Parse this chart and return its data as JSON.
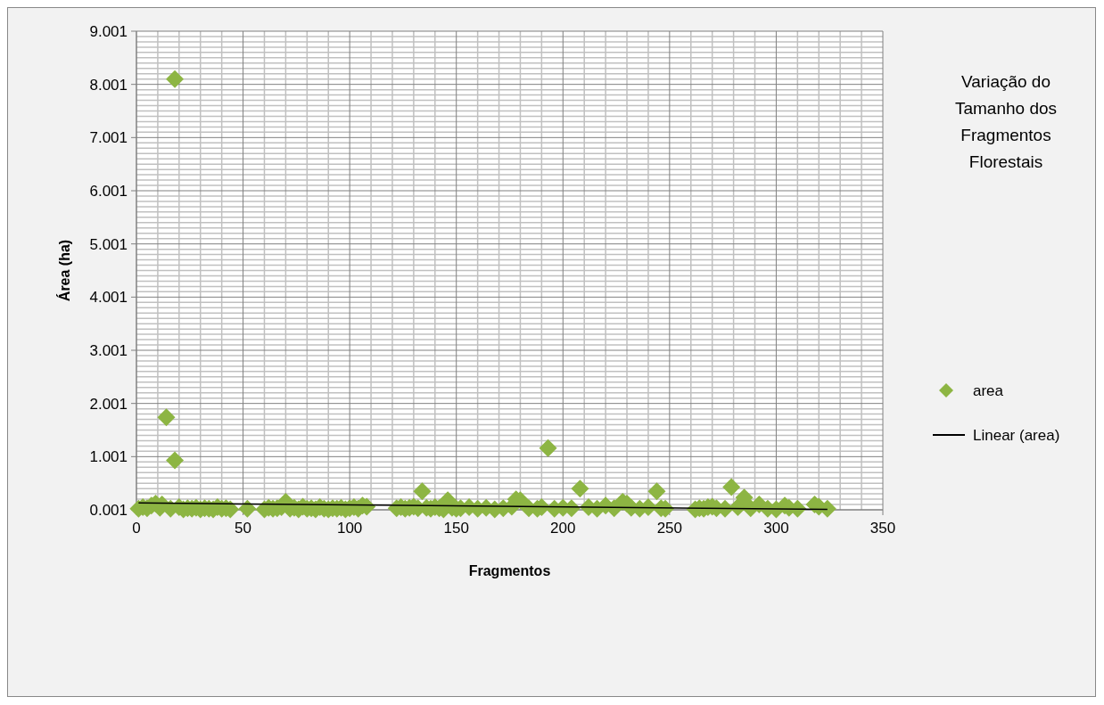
{
  "chart_data": {
    "type": "scatter",
    "title": "Variação do Tamanho dos Fragmentos Florestais",
    "xlabel": "Fragmentos",
    "ylabel": "Área (ha)",
    "xlim": [
      0,
      350
    ],
    "xticks": [
      0,
      50,
      100,
      150,
      200,
      250,
      300,
      350
    ],
    "ylim": [
      0.001,
      9.001
    ],
    "yticks": [
      0.001,
      1.001,
      2.001,
      3.001,
      4.001,
      5.001,
      6.001,
      7.001,
      8.001,
      9.001
    ],
    "grid": true,
    "legend": "right",
    "marker": "diamond",
    "series": [
      {
        "name": "area",
        "color": "#8db543",
        "x": [
          1,
          3,
          5,
          7,
          9,
          11,
          12,
          14,
          16,
          18,
          18,
          20,
          22,
          24,
          26,
          28,
          30,
          32,
          34,
          36,
          38,
          40,
          42,
          44,
          52,
          60,
          62,
          64,
          66,
          68,
          70,
          72,
          74,
          76,
          78,
          80,
          82,
          84,
          86,
          88,
          90,
          92,
          94,
          96,
          98,
          100,
          102,
          104,
          106,
          108,
          122,
          124,
          126,
          128,
          130,
          132,
          134,
          136,
          138,
          140,
          142,
          144,
          146,
          148,
          150,
          152,
          156,
          160,
          164,
          168,
          172,
          176,
          178,
          180,
          184,
          188,
          190,
          193,
          196,
          200,
          204,
          208,
          212,
          216,
          220,
          224,
          228,
          230,
          232,
          236,
          240,
          244,
          246,
          248,
          262,
          264,
          266,
          268,
          270,
          272,
          276,
          279,
          282,
          285,
          288,
          292,
          296,
          300,
          304,
          306,
          310,
          318,
          320,
          324
        ],
        "values": [
          0.02,
          0.05,
          0.03,
          0.08,
          0.12,
          0.04,
          0.1,
          1.74,
          0.02,
          8.1,
          0.93,
          0.05,
          0.01,
          0.03,
          0.02,
          0.04,
          0.01,
          0.03,
          0.02,
          0.01,
          0.05,
          0.02,
          0.03,
          0.01,
          0.02,
          0.01,
          0.04,
          0.02,
          0.03,
          0.05,
          0.15,
          0.02,
          0.04,
          0.01,
          0.06,
          0.02,
          0.03,
          0.01,
          0.05,
          0.02,
          0.01,
          0.03,
          0.02,
          0.04,
          0.01,
          0.03,
          0.05,
          0.02,
          0.08,
          0.06,
          0.03,
          0.05,
          0.02,
          0.04,
          0.06,
          0.03,
          0.35,
          0.04,
          0.02,
          0.05,
          0.03,
          0.01,
          0.18,
          0.04,
          0.02,
          0.03,
          0.05,
          0.02,
          0.04,
          0.01,
          0.03,
          0.06,
          0.2,
          0.18,
          0.03,
          0.02,
          0.05,
          1.16,
          0.02,
          0.04,
          0.03,
          0.4,
          0.05,
          0.02,
          0.08,
          0.03,
          0.15,
          0.12,
          0.04,
          0.02,
          0.05,
          0.35,
          0.03,
          0.02,
          0.01,
          0.03,
          0.02,
          0.05,
          0.06,
          0.03,
          0.02,
          0.43,
          0.05,
          0.23,
          0.03,
          0.1,
          0.02,
          0.01,
          0.08,
          0.04,
          0.02,
          0.1,
          0.06,
          0.02
        ]
      },
      {
        "name": "Linear (area)",
        "color": "#000000",
        "type": "line",
        "marker": "none",
        "x": [
          1,
          324
        ],
        "values": [
          0.13,
          0.01
        ]
      }
    ]
  }
}
